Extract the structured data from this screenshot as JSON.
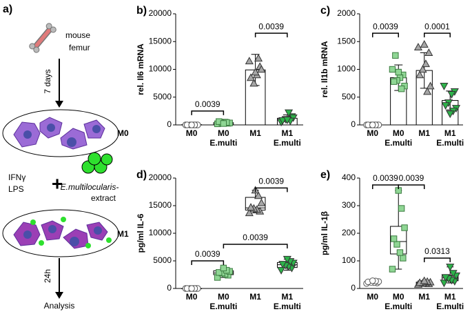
{
  "diagram": {
    "label": "a)",
    "source": [
      "mouse",
      "femur"
    ],
    "step1": "7 days",
    "state1": "M0",
    "stimuli": [
      "IFNγ",
      "LPS"
    ],
    "plus": "+",
    "extract": [
      "E.multilocularis-",
      "extract"
    ],
    "state2": "M1",
    "step2": "24h",
    "result": "Analysis"
  },
  "chart_data": [
    {
      "type": "bar",
      "label": "b)",
      "ylabel": "rel. Il6 mRNA",
      "categories": [
        "M0",
        "M0",
        "M1",
        "M1"
      ],
      "subcategories": [
        null,
        "E.multi",
        null,
        "E.multi"
      ],
      "values": [
        50,
        400,
        9900,
        1200
      ],
      "errors": [
        30,
        200,
        2800,
        600
      ],
      "points": [
        [
          0,
          0,
          0,
          0,
          0,
          0,
          0,
          0
        ],
        [
          200,
          300,
          500,
          400,
          600,
          350,
          450,
          250
        ],
        [
          11500,
          10500,
          9000,
          7500,
          8500,
          10000,
          12000,
          9500
        ],
        [
          500,
          1500,
          2200,
          1000,
          800,
          1300,
          700,
          900
        ]
      ],
      "markers": [
        "circle",
        "square",
        "triangle",
        "triangle-down"
      ],
      "colors": [
        "#ffffff",
        "#8fd694",
        "#a6a6a6",
        "#2db34a"
      ],
      "ylim": [
        0,
        20000
      ],
      "yticks": [
        0,
        5000,
        10000,
        15000,
        20000
      ],
      "brackets": [
        {
          "from": 0,
          "to": 1,
          "y": 2500,
          "label": "0.0039"
        },
        {
          "from": 2,
          "to": 3,
          "y": 16500,
          "label": "0.0039"
        }
      ]
    },
    {
      "type": "bar",
      "label": "c)",
      "ylabel": "rel. Il1b mRNA",
      "categories": [
        "M0",
        "M0",
        "M1",
        "M1"
      ],
      "subcategories": [
        null,
        "E.multi",
        null,
        "E.multi"
      ],
      "values": [
        0,
        850,
        980,
        440
      ],
      "errors": [
        10,
        230,
        320,
        170
      ],
      "points": [
        [
          0,
          0,
          0,
          0,
          0,
          0,
          0,
          0
        ],
        [
          1000,
          900,
          850,
          800,
          780,
          700,
          650,
          950,
          1250
        ],
        [
          1400,
          1300,
          1100,
          1000,
          900,
          700,
          600,
          1450
        ],
        [
          700,
          600,
          550,
          400,
          350,
          300,
          250,
          200
        ]
      ],
      "markers": [
        "circle",
        "square",
        "triangle",
        "triangle-down"
      ],
      "colors": [
        "#ffffff",
        "#8fd694",
        "#a6a6a6",
        "#2db34a"
      ],
      "ylim": [
        0,
        2000
      ],
      "yticks": [
        0,
        500,
        1000,
        1500,
        2000
      ],
      "brackets": [
        {
          "from": 0,
          "to": 1,
          "y": 1650,
          "label": "0.0039"
        },
        {
          "from": 2,
          "to": 3,
          "y": 1650,
          "label": "0.0001"
        }
      ]
    },
    {
      "type": "box",
      "label": "d)",
      "ylabel": "pg/ml IL-6",
      "categories": [
        "M0",
        "M0",
        "M1",
        "M1"
      ],
      "subcategories": [
        null,
        "E.multi",
        null,
        "E.multi"
      ],
      "boxes": [
        {
          "min": 0,
          "q1": 0,
          "median": 0,
          "q3": 0,
          "max": 0
        },
        {
          "min": 2000,
          "q1": 2500,
          "median": 2800,
          "q3": 3200,
          "max": 3700
        },
        {
          "min": 13700,
          "q1": 14200,
          "median": 14600,
          "q3": 16500,
          "max": 17800
        },
        {
          "min": 3300,
          "q1": 3800,
          "median": 4300,
          "q3": 4700,
          "max": 5300
        }
      ],
      "points": [
        [
          0,
          0,
          0,
          0,
          0,
          0,
          0,
          0
        ],
        [
          2000,
          2400,
          2600,
          2800,
          2900,
          3100,
          3300,
          3700
        ],
        [
          13700,
          14000,
          14300,
          14500,
          14700,
          15500,
          16800,
          17800
        ],
        [
          3300,
          3700,
          4000,
          4200,
          4400,
          4600,
          4900,
          5300
        ]
      ],
      "markers": [
        "circle",
        "square",
        "triangle",
        "triangle-down"
      ],
      "colors": [
        "#ffffff",
        "#8fd694",
        "#a6a6a6",
        "#2db34a"
      ],
      "ylim": [
        0,
        20000
      ],
      "yticks": [
        0,
        5000,
        10000,
        15000,
        20000
      ],
      "brackets": [
        {
          "from": 0,
          "to": 1,
          "y": 5000,
          "label": "0.0039"
        },
        {
          "from": 1,
          "to": 3,
          "y": 8000,
          "label": "0.0039"
        },
        {
          "from": 2,
          "to": 3,
          "y": 18200,
          "label": "0.0039"
        }
      ]
    },
    {
      "type": "box",
      "label": "e)",
      "ylabel": "pg/ml IL-1β",
      "categories": [
        "M0",
        "M0",
        "M1",
        "M1"
      ],
      "subcategories": [
        null,
        "E.multi",
        null,
        "E.multi"
      ],
      "boxes": [
        {
          "min": 18,
          "q1": 20,
          "median": 22,
          "q3": 25,
          "max": 28
        },
        {
          "min": 70,
          "q1": 125,
          "median": 170,
          "q3": 225,
          "max": 355
        },
        {
          "min": 15,
          "q1": 18,
          "median": 20,
          "q3": 23,
          "max": 28
        },
        {
          "min": 20,
          "q1": 28,
          "median": 38,
          "q3": 48,
          "max": 78
        }
      ],
      "points": [
        [
          18,
          20,
          21,
          22,
          24,
          25,
          27,
          28
        ],
        [
          70,
          110,
          130,
          160,
          180,
          220,
          290,
          355
        ],
        [
          15,
          17,
          18,
          20,
          21,
          23,
          25,
          28
        ],
        [
          20,
          26,
          30,
          36,
          40,
          46,
          55,
          78
        ]
      ],
      "markers": [
        "circle",
        "square",
        "triangle",
        "triangle-down"
      ],
      "colors": [
        "#ffffff",
        "#8fd694",
        "#a6a6a6",
        "#2db34a"
      ],
      "ylim": [
        0,
        400
      ],
      "yticks": [
        0,
        100,
        200,
        300,
        400
      ],
      "brackets": [
        {
          "from": 0,
          "to": 1,
          "y": 375,
          "label": "0.0039"
        },
        {
          "from": 1,
          "to": 2,
          "y": 375,
          "label": "0.0039"
        },
        {
          "from": 2,
          "to": 3,
          "y": 110,
          "label": "0.0313"
        }
      ]
    }
  ]
}
